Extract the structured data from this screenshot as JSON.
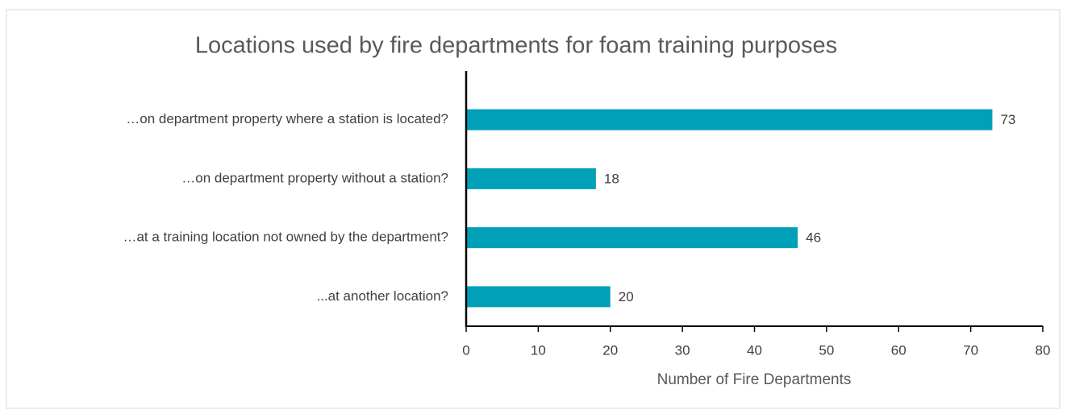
{
  "chart_data": {
    "type": "barh",
    "title": "Locations used by fire departments for foam training purposes",
    "categories": [
      "…on department property where a station is located?",
      "…on department property without a station?",
      "…at a training location not owned by the department?",
      "...at another location?"
    ],
    "values": [
      73,
      18,
      46,
      20
    ],
    "color": "#00a0b9",
    "xlabel": "Number of Fire Departments",
    "xlim": [
      0,
      80
    ],
    "xticks": [
      0,
      10,
      20,
      30,
      40,
      50,
      60,
      70,
      80
    ],
    "grid": false
  }
}
